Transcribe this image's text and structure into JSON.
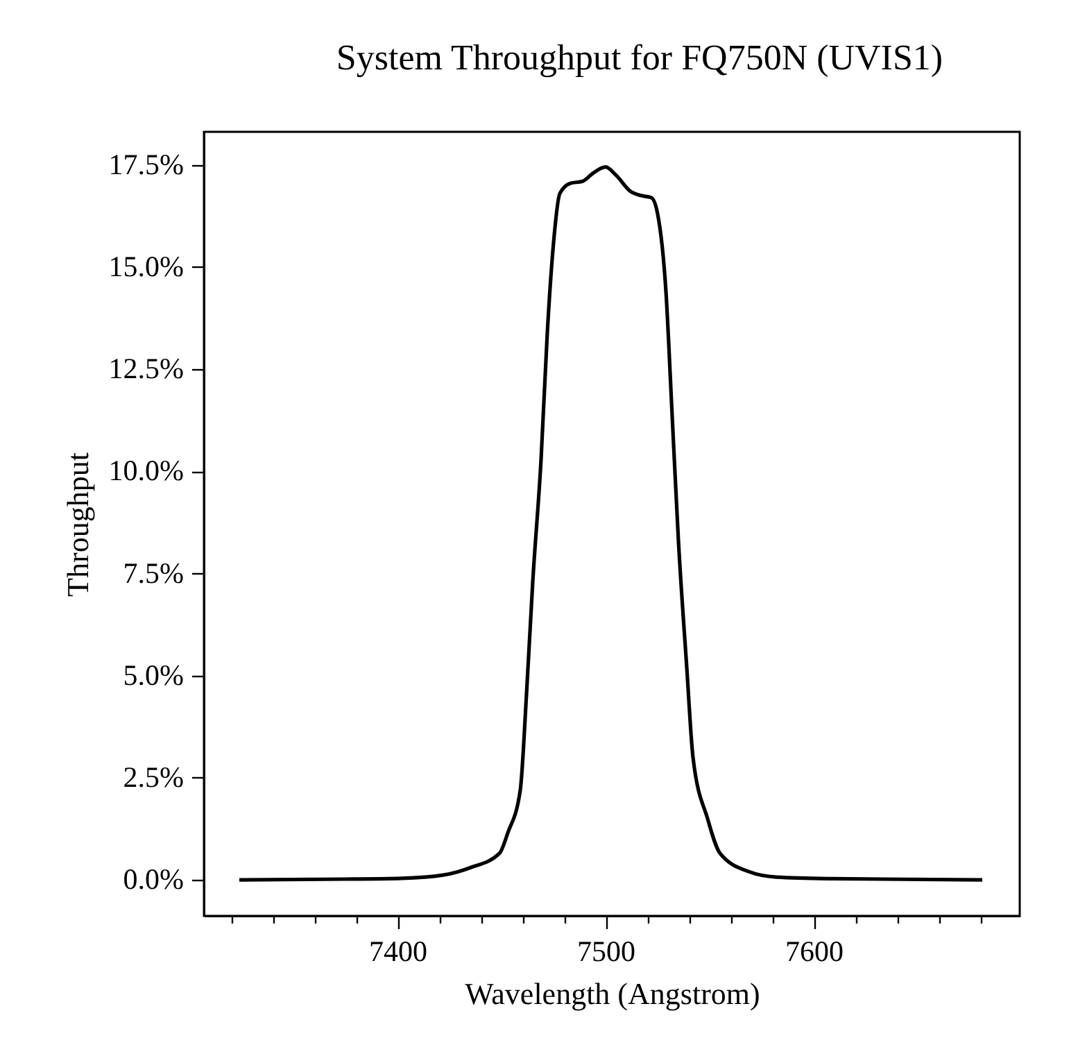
{
  "chart_data": {
    "type": "line",
    "title": "System Throughput for FQ750N (UVIS1)",
    "xlabel": "Wavelength (Angstrom)",
    "ylabel": "Throughput",
    "x": [
      7324,
      7375,
      7402,
      7422,
      7429,
      7435,
      7449,
      7453,
      7459,
      7462,
      7465,
      7469,
      7472,
      7475,
      7478,
      7483,
      7489,
      7494,
      7500,
      7505,
      7512,
      7517,
      7522,
      7525,
      7529,
      7532,
      7535,
      7539,
      7542,
      7549,
      7555,
      7569,
      7582,
      7609,
      7681
    ],
    "series": [
      {
        "color": "#000000",
        "values": [
          0,
          0.02,
          0.04,
          0.12,
          0.2,
          0.3,
          0.65,
          1.15,
          2.2,
          4.55,
          7.3,
          10.3,
          13.4,
          15.6,
          16.8,
          17.05,
          17.1,
          17.3,
          17.45,
          17.25,
          16.85,
          16.75,
          16.7,
          16.3,
          14.4,
          11.35,
          8.3,
          5.2,
          3.0,
          1.5,
          0.65,
          0.2,
          0.07,
          0.03,
          0
        ]
      }
    ],
    "xlim": [
      7307,
      7699
    ],
    "xticks": [
      {
        "value": 7320,
        "label": null
      },
      {
        "value": 7340,
        "label": null
      },
      {
        "value": 7360,
        "label": null
      },
      {
        "value": 7380,
        "label": null
      },
      7400,
      {
        "value": 7420,
        "label": null
      },
      {
        "value": 7440,
        "label": null
      },
      {
        "value": 7460,
        "label": null
      },
      {
        "value": 7480,
        "label": null
      },
      7500,
      {
        "value": 7520,
        "label": null
      },
      {
        "value": 7540,
        "label": null
      },
      {
        "value": 7560,
        "label": null
      },
      {
        "value": 7580,
        "label": null
      },
      7600,
      {
        "value": 7620,
        "label": null
      },
      {
        "value": 7640,
        "label": null
      },
      {
        "value": 7660,
        "label": null
      },
      {
        "value": 7680,
        "label": null
      }
    ],
    "ylim": [
      -0.88,
      18.31
    ],
    "yticks": [
      {
        "value": 0,
        "label": "0.0%"
      },
      {
        "value": 2.5,
        "label": "2.5%"
      },
      {
        "value": 5,
        "label": "5.0%"
      },
      {
        "value": 7.5,
        "label": "7.5%"
      },
      {
        "value": 10,
        "label": "10.0%"
      },
      {
        "value": 12.5,
        "label": "12.5%"
      },
      {
        "value": 15,
        "label": "15.0%"
      },
      {
        "value": 17.5,
        "label": "17.5%"
      }
    ],
    "grid": false,
    "marker": "none",
    "line_style": "solid"
  }
}
